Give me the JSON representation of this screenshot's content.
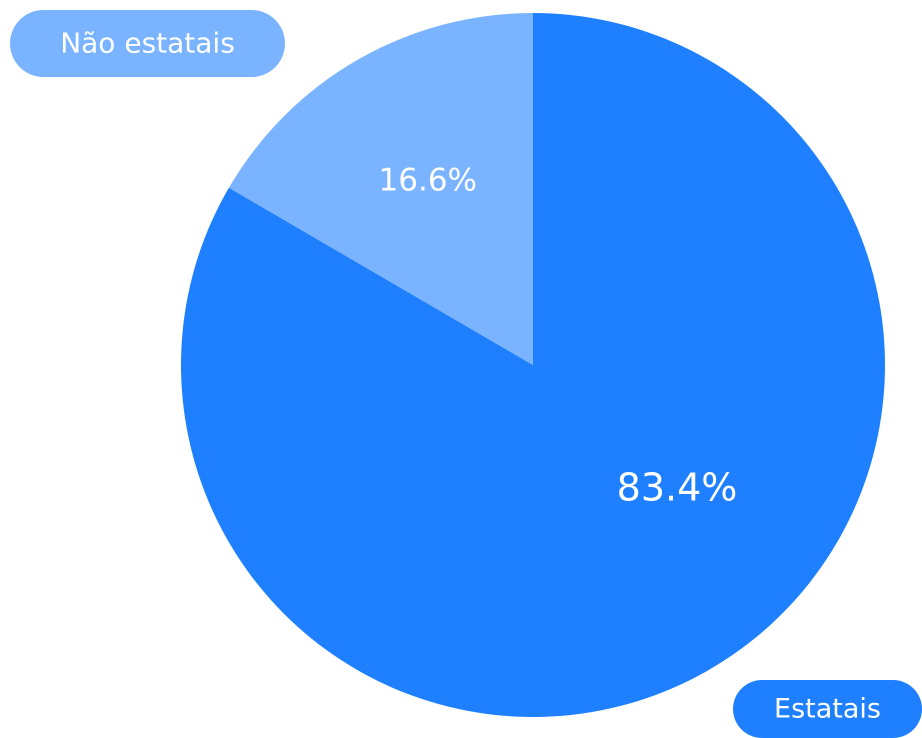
{
  "chart_data": {
    "type": "pie",
    "categories": [
      "Estatais",
      "Não estatais"
    ],
    "values": [
      83.4,
      16.6
    ],
    "value_labels": [
      "83.4%",
      "16.6%"
    ],
    "colors": [
      "#1f80ff",
      "#7ab3ff"
    ]
  }
}
